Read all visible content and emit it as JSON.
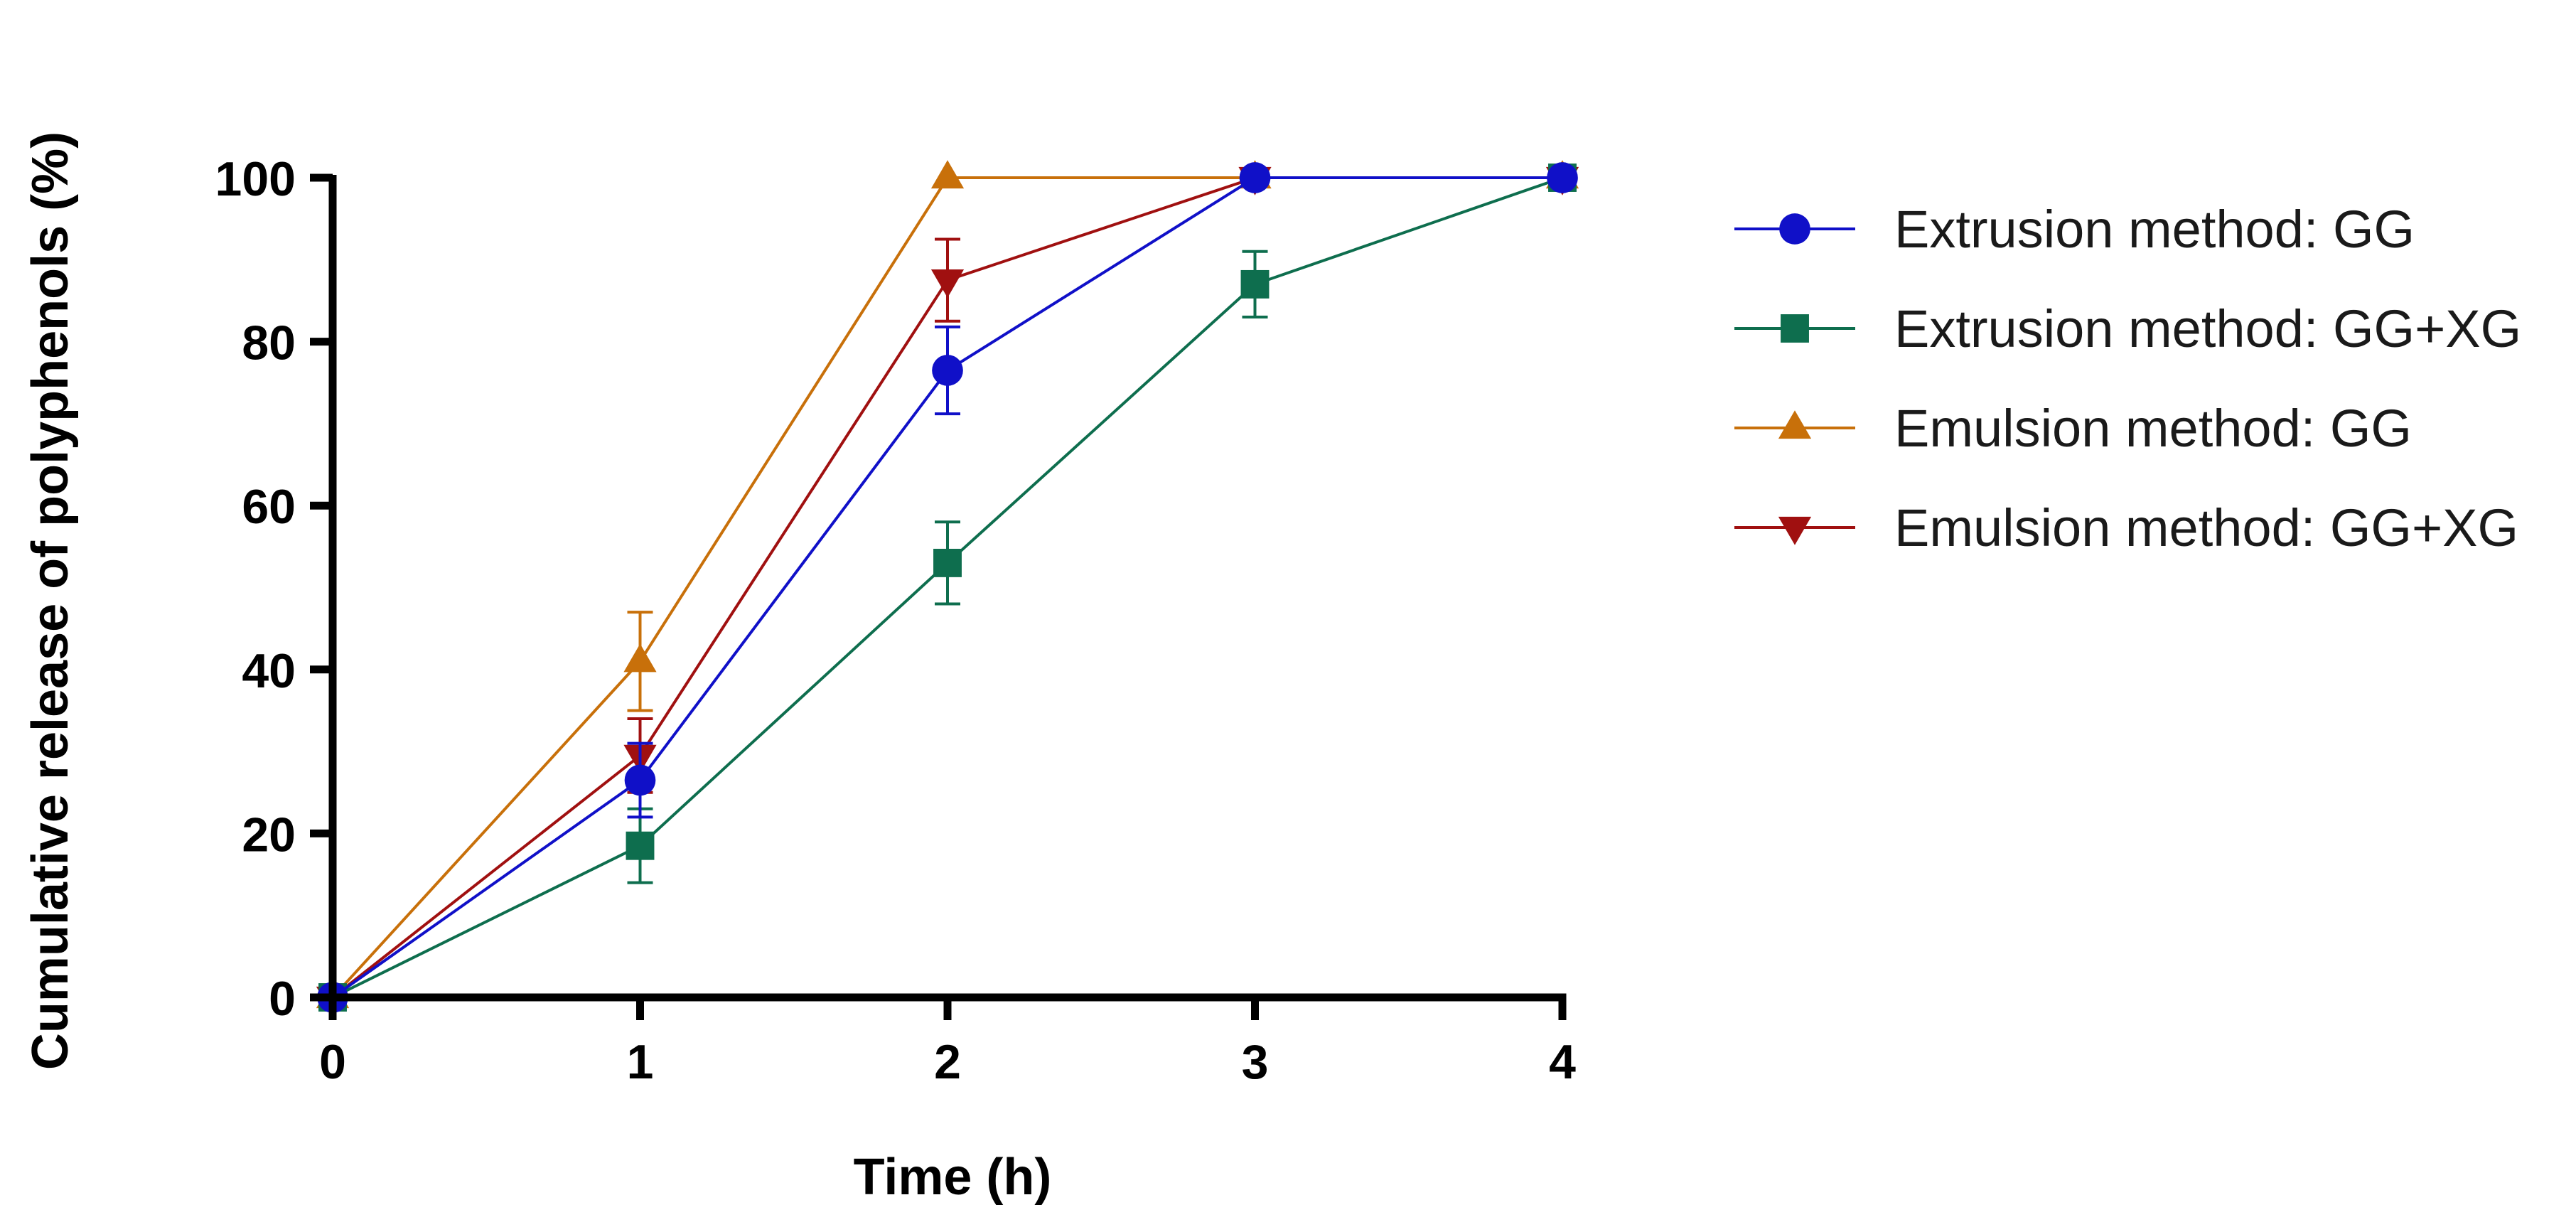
{
  "chart_data": {
    "type": "line",
    "title": "",
    "xlabel": "Time (h)",
    "ylabel": "Cumulative release of polyphenols (%)",
    "xlim": [
      0,
      4
    ],
    "ylim": [
      0,
      100
    ],
    "x": [
      0,
      1,
      2,
      3,
      4
    ],
    "x_tick_labels": [
      "0",
      "1",
      "2",
      "3",
      "4"
    ],
    "y_ticks": [
      0,
      20,
      40,
      60,
      80,
      100
    ],
    "y_tick_labels": [
      "0",
      "20",
      "40",
      "60",
      "80",
      "100"
    ],
    "grid": false,
    "legend_position": "right",
    "series": [
      {
        "name": "Extrusion method: GG",
        "color": "#1010c8",
        "marker": "circle",
        "values": [
          0,
          26.5,
          76.5,
          100,
          100
        ],
        "errors": [
          0,
          4.5,
          5.3,
          0.5,
          0
        ]
      },
      {
        "name": "Extrusion method: GG+XG",
        "color": "#0e6e4e",
        "marker": "square",
        "values": [
          0,
          18.5,
          53,
          87,
          100
        ],
        "errors": [
          0,
          4.5,
          5,
          4,
          0
        ]
      },
      {
        "name": "Emulsion method: GG",
        "color": "#c8700a",
        "marker": "triangle-up",
        "values": [
          0,
          41,
          100,
          100,
          100
        ],
        "errors": [
          0,
          6,
          0,
          0,
          0
        ]
      },
      {
        "name": "Emulsion method: GG+XG",
        "color": "#a01010",
        "marker": "triangle-down",
        "values": [
          0,
          29.5,
          87.5,
          100,
          100
        ],
        "errors": [
          0,
          4.5,
          5,
          0,
          0
        ]
      }
    ]
  }
}
